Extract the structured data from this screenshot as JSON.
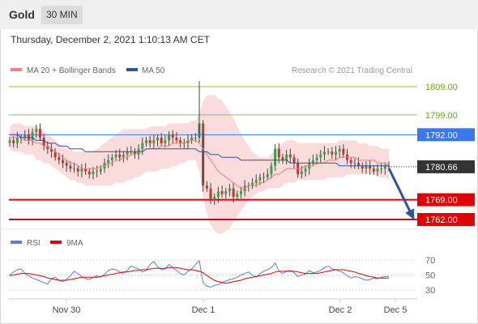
{
  "header": {
    "instrument": "Gold",
    "timeframe": "30 MIN",
    "datetime": "Thursday, December 2, 2021 1:10:13 AM CET"
  },
  "chart_data": [
    {
      "type": "candlestick",
      "title": "",
      "legend": [
        {
          "name": "MA 20 + Bollinger Bands",
          "color": "#f08080"
        },
        {
          "name": "MA 50",
          "color": "#2e5597"
        }
      ],
      "legend_placement": "top-left",
      "copyright": "Research © 2021 Trading Central",
      "ylim": [
        1757,
        1812
      ],
      "levels": [
        {
          "value": 1809.0,
          "label": "1809.00",
          "color": "#8bc34a",
          "label_bg": "none",
          "label_color": "#6aa32a"
        },
        {
          "value": 1799.0,
          "label": "1799.00",
          "color": "#8bc34a",
          "label_bg": "none",
          "label_color": "#6aa32a"
        },
        {
          "value": 1792.0,
          "label": "1792.00",
          "color": "#3b78e7",
          "label_bg": "#3b78e7",
          "label_color": "#ffffff"
        },
        {
          "value": 1769.0,
          "label": "1769.00",
          "color": "#e00000",
          "label_bg": "#e00000",
          "label_color": "#ffffff"
        },
        {
          "value": 1762.0,
          "label": "1762.00",
          "color": "#e00000",
          "label_bg": "#e00000",
          "label_color": "#ffffff"
        }
      ],
      "last_price": {
        "value": 1780.66,
        "label": "1780.66"
      },
      "forecast_arrow": {
        "from": 1780.66,
        "to": 1762.0,
        "color": "#2e5597"
      },
      "x_ticks": [
        "Nov 30",
        "Dec 1",
        "Dec 2",
        "Dec 5"
      ],
      "ohlc_close": [
        1790,
        1789,
        1791,
        1791,
        1792,
        1790,
        1793,
        1794,
        1791,
        1788,
        1787,
        1786,
        1784,
        1783,
        1782,
        1781,
        1780,
        1780,
        1779,
        1780,
        1779,
        1778,
        1779,
        1779,
        1780,
        1782,
        1783,
        1784,
        1785,
        1784,
        1785,
        1786,
        1786,
        1785,
        1787,
        1789,
        1790,
        1789,
        1790,
        1791,
        1789,
        1790,
        1792,
        1791,
        1790,
        1789,
        1789,
        1790,
        1791,
        1791,
        1796,
        1774,
        1773,
        1769,
        1770,
        1772,
        1771,
        1772,
        1773,
        1770,
        1771,
        1772,
        1774,
        1774,
        1775,
        1776,
        1777,
        1777,
        1778,
        1781,
        1787,
        1784,
        1783,
        1785,
        1784,
        1782,
        1778,
        1779,
        1780,
        1782,
        1783,
        1784,
        1785,
        1786,
        1786,
        1785,
        1786,
        1787,
        1785,
        1783,
        1782,
        1782,
        1781,
        1780,
        1781,
        1780,
        1779,
        1780,
        1780,
        1781,
        1780.66
      ],
      "ma20": [
        1791,
        1791,
        1791,
        1791,
        1790,
        1790,
        1790,
        1789,
        1789,
        1788,
        1788,
        1787,
        1786,
        1785,
        1784,
        1783,
        1782,
        1782,
        1781,
        1780,
        1780,
        1780,
        1780,
        1780,
        1781,
        1781,
        1782,
        1782,
        1783,
        1783,
        1784,
        1784,
        1785,
        1785,
        1786,
        1786,
        1787,
        1787,
        1787,
        1787,
        1788,
        1788,
        1788,
        1789,
        1789,
        1789,
        1789,
        1790,
        1790,
        1790,
        1789,
        1787,
        1785,
        1783,
        1781,
        1779,
        1778,
        1777,
        1776,
        1775,
        1774,
        1773,
        1773,
        1774,
        1774,
        1774,
        1775,
        1775,
        1776,
        1777,
        1778,
        1778,
        1779,
        1780,
        1780,
        1780,
        1780,
        1780,
        1781,
        1781,
        1781,
        1782,
        1782,
        1782,
        1783,
        1783,
        1783,
        1784,
        1784,
        1784,
        1784,
        1784,
        1783,
        1783,
        1783,
        1783,
        1783,
        1782,
        1782,
        1782,
        1781
      ],
      "ma50": [
        1792,
        1792,
        1792,
        1791,
        1791,
        1791,
        1791,
        1790,
        1790,
        1790,
        1789,
        1789,
        1789,
        1788,
        1788,
        1788,
        1787,
        1787,
        1787,
        1787,
        1786,
        1786,
        1786,
        1786,
        1786,
        1786,
        1786,
        1786,
        1786,
        1786,
        1786,
        1786,
        1786,
        1786,
        1786,
        1786,
        1787,
        1787,
        1787,
        1787,
        1787,
        1787,
        1787,
        1787,
        1787,
        1787,
        1787,
        1787,
        1787,
        1787,
        1786,
        1786,
        1786,
        1785,
        1785,
        1785,
        1784,
        1784,
        1784,
        1784,
        1784,
        1783,
        1783,
        1783,
        1783,
        1783,
        1783,
        1783,
        1783,
        1783,
        1783,
        1783,
        1783,
        1783,
        1782,
        1782,
        1782,
        1782,
        1782,
        1782,
        1782,
        1782,
        1782,
        1782,
        1782,
        1782,
        1782,
        1781,
        1781,
        1781,
        1781,
        1781,
        1781,
        1781,
        1781,
        1781,
        1781,
        1781,
        1781,
        1781,
        1781
      ],
      "bb_upper": [
        1795,
        1796,
        1796,
        1796,
        1795,
        1795,
        1795,
        1795,
        1794,
        1793,
        1792,
        1791,
        1790,
        1789,
        1788,
        1787,
        1787,
        1786,
        1786,
        1786,
        1786,
        1786,
        1786,
        1787,
        1788,
        1789,
        1790,
        1791,
        1792,
        1793,
        1794,
        1794,
        1794,
        1794,
        1794,
        1794,
        1794,
        1795,
        1795,
        1795,
        1795,
        1795,
        1796,
        1796,
        1796,
        1796,
        1796,
        1796,
        1797,
        1797,
        1799,
        1804,
        1806,
        1806,
        1806,
        1805,
        1804,
        1802,
        1800,
        1798,
        1795,
        1792,
        1790,
        1788,
        1786,
        1785,
        1784,
        1784,
        1784,
        1785,
        1787,
        1788,
        1789,
        1790,
        1790,
        1790,
        1789,
        1789,
        1789,
        1789,
        1789,
        1789,
        1789,
        1789,
        1789,
        1789,
        1789,
        1790,
        1790,
        1790,
        1790,
        1790,
        1789,
        1789,
        1789,
        1788,
        1788,
        1788,
        1787,
        1787,
        1787
      ],
      "bb_lower": [
        1787,
        1786,
        1786,
        1786,
        1785,
        1785,
        1785,
        1783,
        1783,
        1782,
        1782,
        1781,
        1780,
        1779,
        1778,
        1777,
        1776,
        1776,
        1775,
        1775,
        1774,
        1774,
        1774,
        1774,
        1774,
        1774,
        1774,
        1774,
        1775,
        1775,
        1775,
        1776,
        1776,
        1777,
        1777,
        1778,
        1779,
        1779,
        1779,
        1779,
        1780,
        1780,
        1780,
        1781,
        1781,
        1782,
        1782,
        1783,
        1783,
        1783,
        1779,
        1770,
        1764,
        1760,
        1758,
        1757,
        1757,
        1758,
        1759,
        1761,
        1763,
        1765,
        1767,
        1769,
        1770,
        1771,
        1772,
        1772,
        1773,
        1773,
        1773,
        1773,
        1774,
        1775,
        1775,
        1775,
        1776,
        1776,
        1776,
        1776,
        1776,
        1776,
        1776,
        1776,
        1777,
        1777,
        1777,
        1777,
        1777,
        1778,
        1778,
        1778,
        1778,
        1778,
        1778,
        1778,
        1778,
        1777,
        1777,
        1777,
        1776
      ]
    },
    {
      "type": "line",
      "legend": [
        {
          "name": "RSI",
          "color": "#5b7fd6"
        },
        {
          "name": "9MA",
          "color": "#e00000"
        }
      ],
      "ylim": [
        20,
        80
      ],
      "y_ticks": [
        "70",
        "50",
        "30"
      ],
      "rsi": [
        50,
        54,
        57,
        58,
        52,
        49,
        46,
        44,
        42,
        40,
        38,
        45,
        47,
        43,
        41,
        44,
        49,
        55,
        52,
        48,
        45,
        44,
        47,
        49,
        47,
        51,
        56,
        58,
        57,
        54,
        52,
        56,
        62,
        60,
        58,
        54,
        56,
        64,
        68,
        61,
        57,
        58,
        64,
        60,
        56,
        52,
        50,
        55,
        58,
        64,
        69,
        40,
        35,
        34,
        36,
        37,
        40,
        42,
        44,
        45,
        47,
        50,
        52,
        54,
        50,
        47,
        52,
        55,
        57,
        60,
        66,
        55,
        52,
        55,
        56,
        53,
        48,
        50,
        51,
        56,
        53,
        54,
        56,
        60,
        62,
        58,
        57,
        55,
        53,
        49,
        46,
        48,
        47,
        45,
        43,
        44,
        46,
        45,
        47,
        48,
        48
      ],
      "ma9": [
        49,
        50,
        51,
        52,
        52,
        52,
        51,
        50,
        49,
        48,
        46,
        45,
        44,
        43,
        43,
        43,
        44,
        45,
        46,
        47,
        47,
        47,
        47,
        47,
        48,
        49,
        50,
        51,
        52,
        53,
        54,
        54,
        55,
        56,
        56,
        57,
        57,
        58,
        59,
        59,
        59,
        59,
        60,
        60,
        60,
        59,
        58,
        57,
        57,
        56,
        55,
        53,
        49,
        46,
        43,
        41,
        40,
        39,
        40,
        41,
        42,
        43,
        45,
        46,
        47,
        48,
        49,
        50,
        51,
        52,
        54,
        55,
        55,
        55,
        55,
        55,
        54,
        53,
        52,
        52,
        52,
        52,
        53,
        54,
        55,
        56,
        57,
        57,
        57,
        56,
        55,
        54,
        52,
        51,
        49,
        48,
        47,
        46,
        46,
        46,
        46
      ]
    }
  ]
}
